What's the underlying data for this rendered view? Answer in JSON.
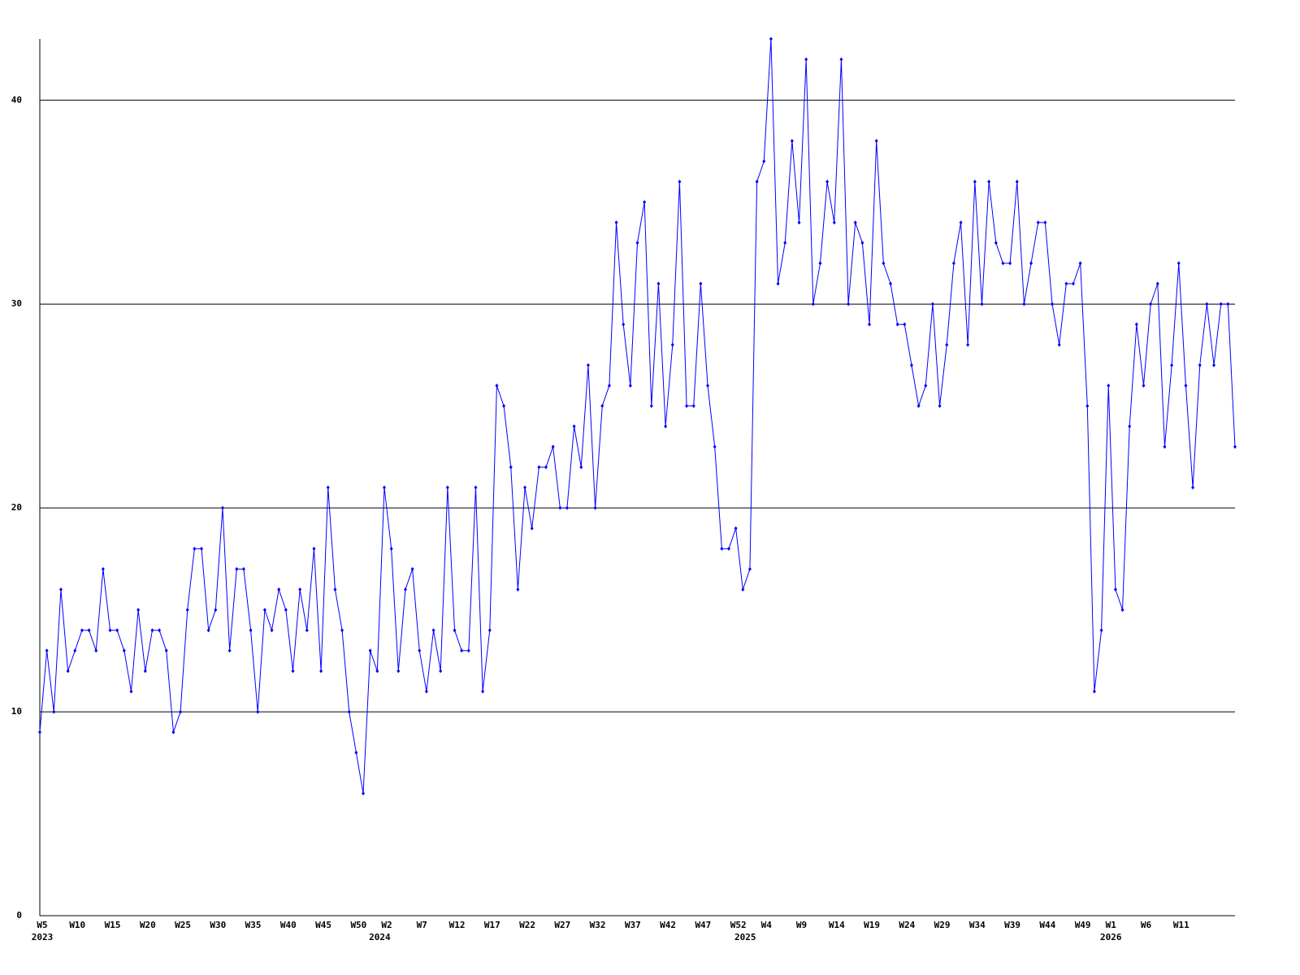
{
  "chart_data": {
    "type": "line",
    "categories": [
      "W5",
      null,
      null,
      null,
      null,
      "W10",
      null,
      null,
      null,
      null,
      "W15",
      null,
      null,
      null,
      null,
      "W20",
      null,
      null,
      null,
      null,
      "W25",
      null,
      null,
      null,
      null,
      "W30",
      null,
      null,
      null,
      null,
      "W35",
      null,
      null,
      null,
      null,
      "W40",
      null,
      null,
      null,
      null,
      "W45",
      null,
      null,
      null,
      null,
      "W50",
      null,
      null,
      null,
      "W2",
      null,
      null,
      null,
      null,
      "W7",
      null,
      null,
      null,
      null,
      "W12",
      null,
      null,
      null,
      null,
      "W17",
      null,
      null,
      null,
      null,
      "W22",
      null,
      null,
      null,
      null,
      "W27",
      null,
      null,
      null,
      null,
      "W32",
      null,
      null,
      null,
      null,
      "W37",
      null,
      null,
      null,
      null,
      "W42",
      null,
      null,
      null,
      null,
      "W47",
      null,
      null,
      null,
      null,
      "W52",
      null,
      null,
      null,
      "W4",
      null,
      null,
      null,
      null,
      "W9",
      null,
      null,
      null,
      null,
      "W14",
      null,
      null,
      null,
      null,
      "W19",
      null,
      null,
      null,
      null,
      "W24",
      null,
      null,
      null,
      null,
      "W29",
      null,
      null,
      null,
      null,
      "W34",
      null,
      null,
      null,
      null,
      "W39",
      null,
      null,
      null,
      null,
      "W44",
      null,
      null,
      null,
      null,
      "W49",
      null,
      null,
      null,
      "W1",
      null,
      null,
      null,
      null,
      "W6",
      null,
      null,
      null,
      null,
      "W11",
      null,
      null,
      null,
      null,
      null,
      null,
      null,
      null
    ],
    "year_labels": [
      "2023",
      null,
      null,
      null,
      null,
      null,
      null,
      null,
      null,
      null,
      null,
      null,
      null,
      null,
      null,
      null,
      null,
      null,
      null,
      null,
      null,
      null,
      null,
      null,
      null,
      null,
      null,
      null,
      null,
      null,
      null,
      null,
      null,
      null,
      null,
      null,
      null,
      null,
      null,
      null,
      null,
      null,
      null,
      null,
      null,
      null,
      null,
      null,
      "2024",
      null,
      null,
      null,
      null,
      null,
      null,
      null,
      null,
      null,
      null,
      null,
      null,
      null,
      null,
      null,
      null,
      null,
      null,
      null,
      null,
      null,
      null,
      null,
      null,
      null,
      null,
      null,
      null,
      null,
      null,
      null,
      null,
      null,
      null,
      null,
      null,
      null,
      null,
      null,
      null,
      null,
      null,
      null,
      null,
      null,
      null,
      null,
      null,
      null,
      null,
      null,
      "2025",
      null,
      null,
      null,
      null,
      null,
      null,
      null,
      null,
      null,
      null,
      null,
      null,
      null,
      null,
      null,
      null,
      null,
      null,
      null,
      null,
      null,
      null,
      null,
      null,
      null,
      null,
      null,
      null,
      null,
      null,
      null,
      null,
      null,
      null,
      null,
      null,
      null,
      null,
      null,
      null,
      null,
      null,
      null,
      null,
      null,
      null,
      null,
      null,
      null,
      null,
      null,
      "2026",
      null,
      null,
      null,
      null,
      null,
      null,
      null,
      null,
      null,
      null,
      null,
      null,
      null,
      null,
      null,
      null,
      null,
      null
    ],
    "series": [
      {
        "color": "#0000ff",
        "values": [
          9,
          13,
          10,
          16,
          12,
          13,
          14,
          14,
          13,
          17,
          14,
          14,
          13,
          11,
          15,
          12,
          14,
          14,
          13,
          9,
          10,
          15,
          18,
          18,
          14,
          15,
          20,
          13,
          17,
          17,
          14,
          10,
          15,
          14,
          16,
          15,
          12,
          16,
          14,
          18,
          12,
          21,
          16,
          14,
          10,
          8,
          6,
          13,
          12,
          21,
          18,
          12,
          16,
          17,
          13,
          11,
          14,
          12,
          21,
          14,
          13,
          13,
          21,
          11,
          14,
          26,
          25,
          22,
          16,
          21,
          19,
          22,
          22,
          23,
          20,
          20,
          24,
          22,
          27,
          20,
          25,
          26,
          34,
          29,
          26,
          33,
          35,
          25,
          31,
          24,
          28,
          36,
          25,
          25,
          31,
          26,
          23,
          18,
          18,
          19,
          16,
          17,
          36,
          37,
          43,
          31,
          33,
          38,
          34,
          42,
          30,
          32,
          36,
          34,
          42,
          30,
          34,
          33,
          29,
          38,
          32,
          31,
          29,
          29,
          27,
          25,
          26,
          30,
          25,
          28,
          32,
          34,
          28,
          36,
          30,
          36,
          33,
          32,
          32,
          36,
          30,
          32,
          34,
          34,
          30,
          28,
          31,
          31,
          32,
          25,
          11,
          14,
          26,
          16,
          15,
          24,
          29,
          26,
          30,
          31,
          23,
          27,
          32,
          26,
          21,
          27,
          30,
          27,
          30,
          30,
          23
        ]
      }
    ],
    "ylim": [
      0,
      43
    ],
    "yticks": [
      0,
      10,
      20,
      30,
      40
    ],
    "grid": true
  }
}
